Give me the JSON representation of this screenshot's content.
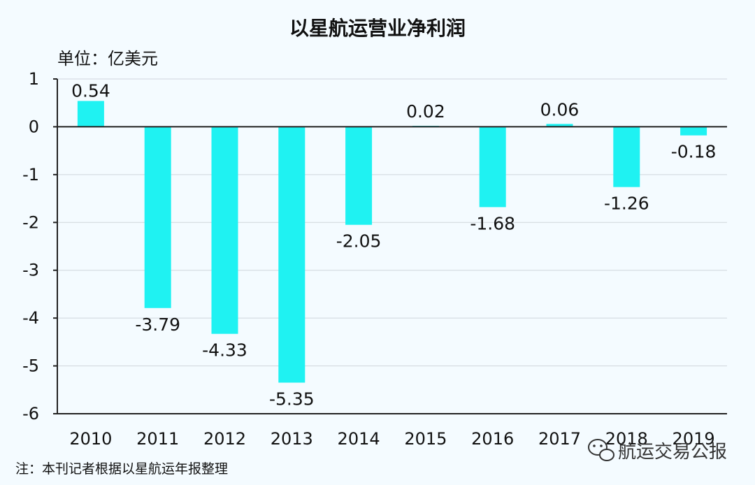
{
  "chart_data": {
    "type": "bar",
    "title": "以星航运营业净利润",
    "unit_label": "单位：亿美元",
    "categories": [
      "2010",
      "2011",
      "2012",
      "2013",
      "2014",
      "2015",
      "2016",
      "2017",
      "2018",
      "2019"
    ],
    "values": [
      0.54,
      -3.79,
      -4.33,
      -5.35,
      -2.05,
      0.02,
      -1.68,
      0.06,
      -1.26,
      -0.18
    ],
    "data_labels": [
      "0.54",
      "-3.79",
      "-4.33",
      "-5.35",
      "-2.05",
      "0.02",
      "-1.68",
      "0.06",
      "-1.26",
      "-0.18"
    ],
    "y_ticks": [
      "1",
      "0",
      "-1",
      "-2",
      "-3",
      "-4",
      "-5",
      "-6"
    ],
    "ylim": [
      -6,
      1
    ],
    "grid": true,
    "bar_color": "#1ff2f2"
  },
  "footnote": "注：本刊记者根据以星航运年报整理",
  "watermark": {
    "icon": "wechat-icon",
    "text": "航运交易公报"
  }
}
